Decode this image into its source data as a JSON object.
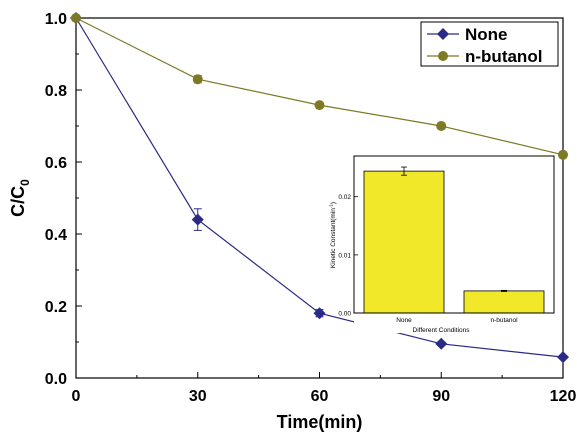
{
  "chart_data": [
    {
      "type": "line",
      "title": "",
      "xlabel": "Time(min)",
      "ylabel_main": "C/C",
      "ylabel_sub": "0",
      "x": [
        0,
        30,
        60,
        90,
        120
      ],
      "xlim": [
        0,
        120
      ],
      "ylim": [
        0.0,
        1.0
      ],
      "x_ticks": [
        0,
        30,
        60,
        90,
        120
      ],
      "x_tick_labels": [
        "0",
        "30",
        "60",
        "90",
        "120"
      ],
      "y_ticks": [
        0.0,
        0.2,
        0.4,
        0.6,
        0.8,
        1.0
      ],
      "y_tick_labels": [
        "0.0",
        "0.2",
        "0.4",
        "0.6",
        "0.8",
        "1.0"
      ],
      "grid": false,
      "legend_position": "top-right",
      "series": [
        {
          "name": "None",
          "marker": "diamond",
          "color": "#2b2a86",
          "values": [
            1.0,
            0.44,
            0.18,
            0.095,
            0.058
          ],
          "errors": [
            0,
            0.03,
            0.01,
            0.005,
            0.004
          ]
        },
        {
          "name": "n-butanol",
          "marker": "circle",
          "color": "#7c7a25",
          "values": [
            1.0,
            0.83,
            0.758,
            0.7,
            0.62
          ],
          "errors": [
            0,
            0.01,
            0.006,
            0.008,
            0.005
          ]
        }
      ]
    },
    {
      "type": "bar",
      "title": "",
      "xlabel": "Different Conditions",
      "ylabel": "Kinetic Constant(min",
      "ylabel_sup": "-1",
      "ylabel_close": ")",
      "categories": [
        "None",
        "n-butanol"
      ],
      "values": [
        0.0244,
        0.0038
      ],
      "errors": [
        0.0007,
        0.0001
      ],
      "ylim": [
        0,
        0.027
      ],
      "y_ticks": [
        0.0,
        0.01,
        0.02
      ],
      "y_tick_labels": [
        "0.00",
        "0.01",
        "0.02"
      ],
      "bar_color": "#f0e829",
      "grid": false
    }
  ]
}
